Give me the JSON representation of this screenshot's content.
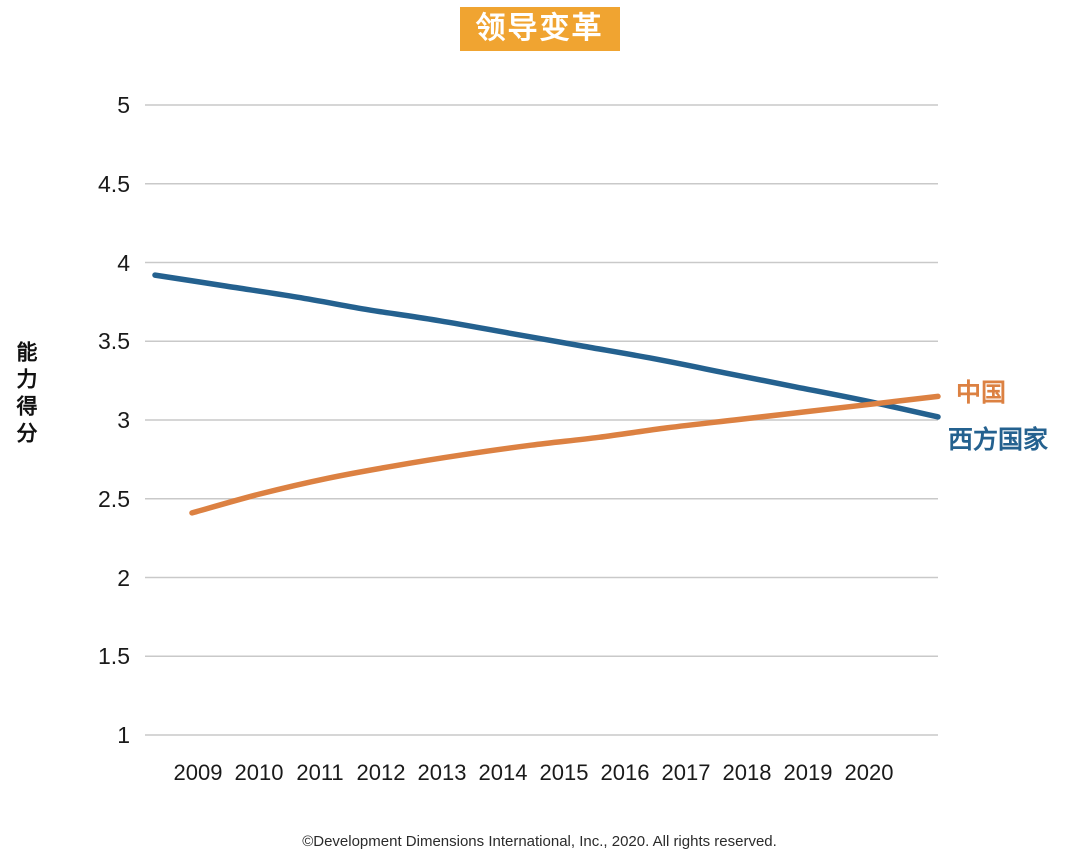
{
  "title": "领导变革",
  "y_axis_label": "能力得分",
  "footer": "©Development Dimensions International, Inc., 2020. All rights reserved.",
  "colors": {
    "title_bg": "#F0A431",
    "title_text": "#FFFFFF",
    "gridline": "#C9C9C9",
    "axis_text": "#1A1A1A",
    "footer_text": "#2B2B2B",
    "china_line": "#DC8142",
    "western_line": "#24618F"
  },
  "chart_data": {
    "type": "line",
    "title": "领导变革",
    "ylabel": "能力得分",
    "ylim": [
      1,
      5
    ],
    "y_ticks": [
      5,
      4.5,
      4,
      3.5,
      3,
      2.5,
      2,
      1.5,
      1
    ],
    "x": [
      2009,
      2010,
      2011,
      2012,
      2013,
      2014,
      2015,
      2016,
      2017,
      2018,
      2019,
      2020
    ],
    "series": [
      {
        "name": "中国",
        "color": "#DC8142",
        "values": [
          2.41,
          2.53,
          2.63,
          2.71,
          2.78,
          2.84,
          2.89,
          2.95,
          3.0,
          3.05,
          3.1,
          3.15
        ]
      },
      {
        "name": "西方国家",
        "color": "#24618F",
        "values": [
          3.92,
          3.85,
          3.78,
          3.7,
          3.63,
          3.55,
          3.47,
          3.39,
          3.3,
          3.21,
          3.12,
          3.02
        ]
      }
    ],
    "grid": "horizontal",
    "legend_position": "right"
  }
}
